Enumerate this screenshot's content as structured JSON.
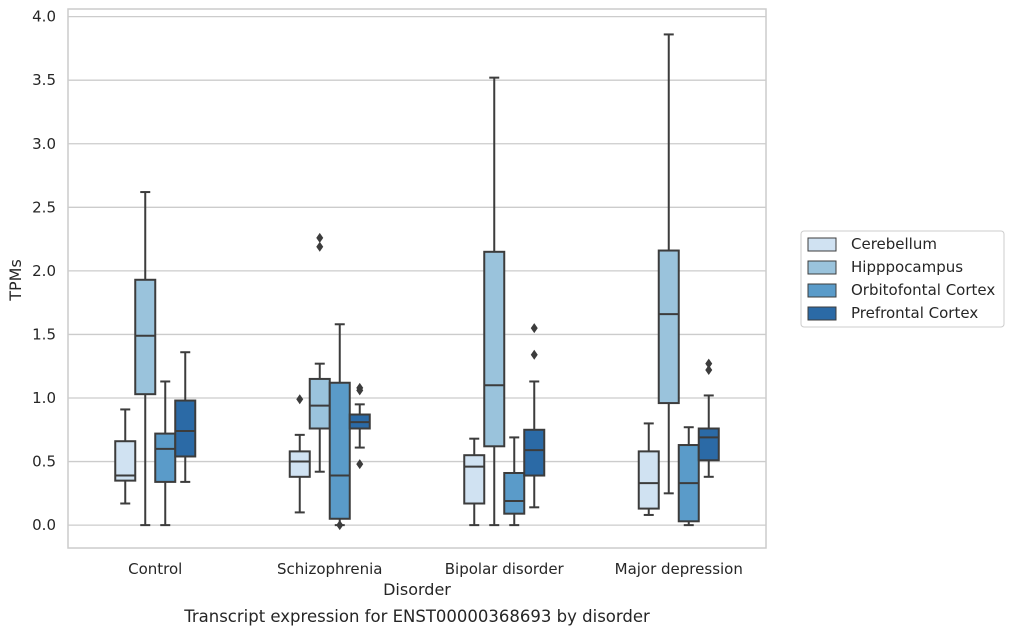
{
  "chart_data": {
    "type": "box",
    "title": "",
    "caption": "Transcript expression for ENST00000368693 by disorder",
    "xlabel": "Disorder",
    "ylabel": "TPMs",
    "ylim": [
      -0.18,
      4.06
    ],
    "yticks": [
      "0.0",
      "0.5",
      "1.0",
      "1.5",
      "2.0",
      "2.5",
      "3.0",
      "3.5",
      "4.0"
    ],
    "categories": [
      "Control",
      "Schizophrenia",
      "Bipolar disorder",
      "Major depression"
    ],
    "grid": "horizontal",
    "legend_position": "right",
    "series": [
      {
        "name": "Cerebellum",
        "color": "#d0e2f2",
        "boxes": [
          {
            "whisker_low": 0.17,
            "q1": 0.35,
            "median": 0.39,
            "q3": 0.66,
            "whisker_high": 0.91,
            "outliers": []
          },
          {
            "whisker_low": 0.1,
            "q1": 0.38,
            "median": 0.5,
            "q3": 0.58,
            "whisker_high": 0.71,
            "outliers": [
              0.99
            ]
          },
          {
            "whisker_low": 0.0,
            "q1": 0.17,
            "median": 0.46,
            "q3": 0.55,
            "whisker_high": 0.68,
            "outliers": []
          },
          {
            "whisker_low": 0.08,
            "q1": 0.13,
            "median": 0.33,
            "q3": 0.58,
            "whisker_high": 0.8,
            "outliers": []
          }
        ]
      },
      {
        "name": "Hipppocampus",
        "color": "#9ac3dc",
        "boxes": [
          {
            "whisker_low": 0.0,
            "q1": 1.03,
            "median": 1.49,
            "q3": 1.93,
            "whisker_high": 2.62,
            "outliers": []
          },
          {
            "whisker_low": 0.42,
            "q1": 0.76,
            "median": 0.94,
            "q3": 1.15,
            "whisker_high": 1.27,
            "outliers": [
              2.26,
              2.19
            ]
          },
          {
            "whisker_low": 0.0,
            "q1": 0.62,
            "median": 1.1,
            "q3": 2.15,
            "whisker_high": 3.52,
            "outliers": []
          },
          {
            "whisker_low": 0.25,
            "q1": 0.96,
            "median": 1.66,
            "q3": 2.16,
            "whisker_high": 3.86,
            "outliers": []
          }
        ]
      },
      {
        "name": "Orbitofontal Cortex",
        "color": "#5a9bc9",
        "boxes": [
          {
            "whisker_low": 0.0,
            "q1": 0.34,
            "median": 0.6,
            "q3": 0.72,
            "whisker_high": 1.13,
            "outliers": []
          },
          {
            "whisker_low": 0.0,
            "q1": 0.05,
            "median": 0.39,
            "q3": 1.12,
            "whisker_high": 1.58,
            "outliers": [
              0.0
            ]
          },
          {
            "whisker_low": 0.0,
            "q1": 0.09,
            "median": 0.19,
            "q3": 0.41,
            "whisker_high": 0.69,
            "outliers": []
          },
          {
            "whisker_low": 0.0,
            "q1": 0.03,
            "median": 0.33,
            "q3": 0.63,
            "whisker_high": 0.77,
            "outliers": []
          }
        ]
      },
      {
        "name": "Prefrontal Cortex",
        "color": "#2b6aa6",
        "boxes": [
          {
            "whisker_low": 0.34,
            "q1": 0.54,
            "median": 0.74,
            "q3": 0.98,
            "whisker_high": 1.36,
            "outliers": []
          },
          {
            "whisker_low": 0.61,
            "q1": 0.76,
            "median": 0.81,
            "q3": 0.87,
            "whisker_high": 0.95,
            "outliers": [
              1.08,
              1.06,
              0.48
            ]
          },
          {
            "whisker_low": 0.14,
            "q1": 0.39,
            "median": 0.59,
            "q3": 0.75,
            "whisker_high": 1.13,
            "outliers": [
              1.55,
              1.34
            ]
          },
          {
            "whisker_low": 0.38,
            "q1": 0.51,
            "median": 0.69,
            "q3": 0.76,
            "whisker_high": 1.02,
            "outliers": [
              1.27,
              1.22
            ]
          }
        ]
      }
    ]
  }
}
